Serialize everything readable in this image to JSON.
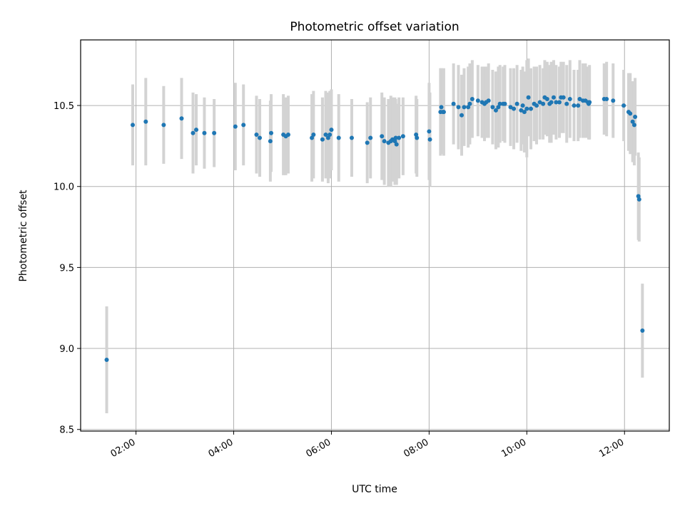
{
  "chart_data": {
    "type": "scatter",
    "title": "Photometric offset variation",
    "xlabel": "UTC time",
    "ylabel": "Photometric offset",
    "x_ticks": [
      "02:00",
      "04:00",
      "06:00",
      "08:00",
      "10:00",
      "12:00"
    ],
    "y_ticks": [
      "8.5",
      "9.0",
      "9.5",
      "10.0",
      "10.5"
    ],
    "xlim": [
      "00:52",
      "12:55"
    ],
    "ylim": [
      8.49,
      10.905
    ],
    "grid": true,
    "legend": "none",
    "marker_color": "#1f77b4",
    "errorbar_color": "#d3d3d3",
    "series": [
      {
        "x": [
          "01:24",
          "01:56",
          "02:12",
          "02:34",
          "02:56",
          "03:10",
          "03:14",
          "03:24",
          "03:36",
          "04:02",
          "04:12",
          "04:28",
          "04:32",
          "04:45",
          "04:46",
          "05:01",
          "05:04",
          "05:07",
          "05:36",
          "05:38",
          "05:49",
          "05:53",
          "05:56",
          "05:58",
          "06:00",
          "06:09",
          "06:25",
          "06:44",
          "06:48",
          "07:02",
          "07:05",
          "07:10",
          "07:13",
          "07:15",
          "07:18",
          "07:19",
          "07:20",
          "07:23",
          "07:28",
          "07:44",
          "07:45",
          "08:00",
          "08:01",
          "08:14",
          "08:15",
          "08:17",
          "08:18",
          "08:30",
          "08:36",
          "08:40",
          "08:43",
          "08:48",
          "08:50",
          "08:53",
          "09:00",
          "09:05",
          "09:08",
          "09:10",
          "09:13",
          "09:18",
          "09:22",
          "09:25",
          "09:27",
          "09:31",
          "09:33",
          "09:40",
          "09:44",
          "09:48",
          "09:53",
          "09:55",
          "09:57",
          "10:00",
          "10:02",
          "10:05",
          "10:09",
          "10:12",
          "10:16",
          "10:20",
          "10:22",
          "10:25",
          "10:28",
          "10:30",
          "10:33",
          "10:36",
          "10:40",
          "10:42",
          "10:45",
          "10:49",
          "10:53",
          "10:58",
          "11:03",
          "11:05",
          "11:09",
          "11:12",
          "11:15",
          "11:16",
          "11:17",
          "11:35",
          "11:38",
          "11:46",
          "11:59",
          "12:05",
          "12:07",
          "12:10",
          "12:12",
          "12:13",
          "12:17",
          "12:18",
          "12:22"
        ],
        "y": [
          8.93,
          10.38,
          10.4,
          10.38,
          10.42,
          10.33,
          10.35,
          10.33,
          10.33,
          10.37,
          10.38,
          10.32,
          10.3,
          10.28,
          10.33,
          10.32,
          10.31,
          10.32,
          10.3,
          10.32,
          10.29,
          10.32,
          10.3,
          10.32,
          10.35,
          10.3,
          10.3,
          10.27,
          10.3,
          10.31,
          10.28,
          10.27,
          10.28,
          10.29,
          10.28,
          10.3,
          10.26,
          10.3,
          10.31,
          10.32,
          10.3,
          10.34,
          10.29,
          10.46,
          10.49,
          10.46,
          10.46,
          10.51,
          10.49,
          10.44,
          10.49,
          10.49,
          10.51,
          10.54,
          10.53,
          10.52,
          10.51,
          10.52,
          10.53,
          10.49,
          10.47,
          10.49,
          10.51,
          10.51,
          10.51,
          10.49,
          10.48,
          10.51,
          10.47,
          10.5,
          10.46,
          10.48,
          10.55,
          10.48,
          10.51,
          10.5,
          10.52,
          10.51,
          10.55,
          10.54,
          10.51,
          10.52,
          10.55,
          10.52,
          10.52,
          10.55,
          10.55,
          10.51,
          10.54,
          10.5,
          10.5,
          10.54,
          10.53,
          10.53,
          10.52,
          10.51,
          10.52,
          10.54,
          10.54,
          10.53,
          10.5,
          10.46,
          10.45,
          10.4,
          10.38,
          10.43,
          9.94,
          9.92,
          9.11
        ],
        "yerr": [
          0.33,
          0.25,
          0.27,
          0.24,
          0.25,
          0.25,
          0.22,
          0.22,
          0.21,
          0.27,
          0.25,
          0.24,
          0.24,
          0.25,
          0.24,
          0.25,
          0.24,
          0.24,
          0.27,
          0.27,
          0.26,
          0.27,
          0.28,
          0.27,
          0.25,
          0.27,
          0.24,
          0.25,
          0.25,
          0.27,
          0.27,
          0.27,
          0.28,
          0.26,
          0.27,
          0.24,
          0.25,
          0.25,
          0.24,
          0.24,
          0.24,
          0.3,
          0.29,
          0.27,
          0.24,
          0.26,
          0.27,
          0.25,
          0.26,
          0.25,
          0.24,
          0.25,
          0.25,
          0.24,
          0.22,
          0.22,
          0.23,
          0.22,
          0.23,
          0.23,
          0.24,
          0.25,
          0.24,
          0.23,
          0.24,
          0.24,
          0.25,
          0.24,
          0.25,
          0.24,
          0.25,
          0.3,
          0.24,
          0.25,
          0.23,
          0.24,
          0.23,
          0.22,
          0.23,
          0.23,
          0.24,
          0.25,
          0.23,
          0.23,
          0.22,
          0.22,
          0.22,
          0.24,
          0.24,
          0.22,
          0.22,
          0.24,
          0.23,
          0.23,
          0.22,
          0.22,
          0.23,
          0.22,
          0.23,
          0.23,
          0.22,
          0.24,
          0.25,
          0.25,
          0.25,
          0.24,
          0.27,
          0.26,
          0.29
        ]
      }
    ]
  }
}
